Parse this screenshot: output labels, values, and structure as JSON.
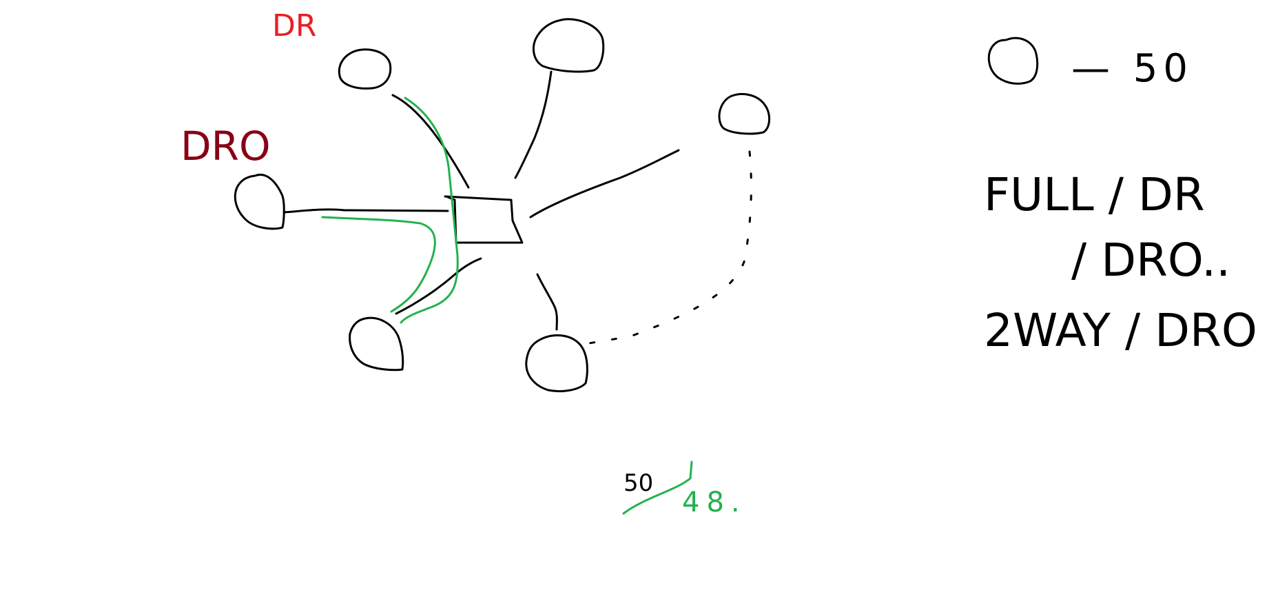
{
  "colors": {
    "black": "#000000",
    "green": "#22b14c",
    "red": "#ed1c24",
    "dark_red": "#880015"
  },
  "diagram": {
    "hub": {
      "shape": "square"
    },
    "nodes": [
      {
        "id": "node-dr",
        "label": "DR",
        "label_color": "red"
      },
      {
        "id": "node-top",
        "label": ""
      },
      {
        "id": "node-right",
        "label": ""
      },
      {
        "id": "node-dro",
        "label": "DRO",
        "label_color": "dark_red"
      },
      {
        "id": "node-bottom-left",
        "label": ""
      },
      {
        "id": "node-bottom",
        "label": ""
      }
    ],
    "connections": [
      {
        "from": "hub",
        "to": "node-dr",
        "style": "solid"
      },
      {
        "from": "hub",
        "to": "node-top",
        "style": "solid"
      },
      {
        "from": "hub",
        "to": "node-right",
        "style": "solid"
      },
      {
        "from": "hub",
        "to": "node-dro",
        "style": "solid"
      },
      {
        "from": "hub",
        "to": "node-bottom-left",
        "style": "solid"
      },
      {
        "from": "hub",
        "to": "node-bottom",
        "style": "solid"
      },
      {
        "from": "node-right",
        "to": "node-bottom",
        "style": "dotted"
      },
      {
        "from": "node-dr",
        "to": "node-bottom-left",
        "style": "solid",
        "color": "green"
      },
      {
        "from": "node-dro",
        "to": "node-bottom-left",
        "style": "solid",
        "color": "green"
      }
    ],
    "bottom_note": {
      "original": "50",
      "struck_out": true,
      "replacement": "48."
    }
  },
  "legend": {
    "node_limit": {
      "symbol": "node",
      "text": "— 50"
    },
    "line1": "FULL / DR",
    "line2": "/ DRO..",
    "line3": "2WAY / DRO"
  }
}
